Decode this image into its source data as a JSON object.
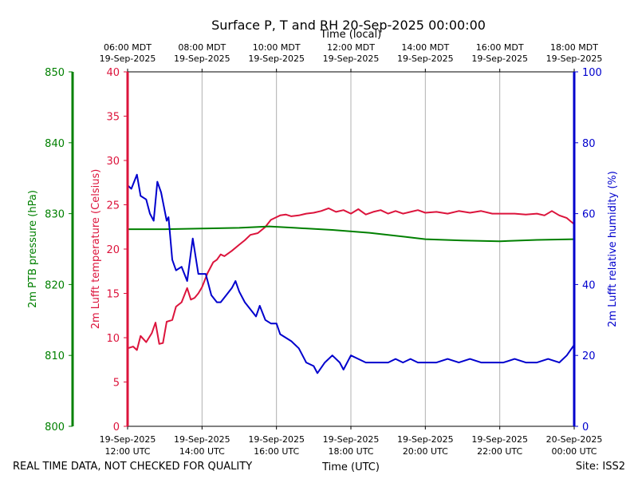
{
  "chart_data": {
    "type": "line",
    "title": "Surface P, T and RH 20-Sep-2025 00:00:00",
    "top_axis_title": "Time (local)",
    "bottom_axis_title": "Time (UTC)",
    "footer_left": "REAL TIME DATA, NOT CHECKED FOR QUALITY",
    "footer_right": "Site: ISS2",
    "x_hours": [
      12,
      14,
      16,
      18,
      20,
      22,
      24
    ],
    "xlim": [
      12,
      24
    ],
    "bottom_ticks": [
      [
        "19-Sep-2025",
        "12:00 UTC"
      ],
      [
        "19-Sep-2025",
        "14:00 UTC"
      ],
      [
        "19-Sep-2025",
        "16:00 UTC"
      ],
      [
        "19-Sep-2025",
        "18:00 UTC"
      ],
      [
        "19-Sep-2025",
        "20:00 UTC"
      ],
      [
        "19-Sep-2025",
        "22:00 UTC"
      ],
      [
        "20-Sep-2025",
        "00:00 UTC"
      ]
    ],
    "top_ticks": [
      [
        "06:00 MDT",
        "19-Sep-2025"
      ],
      [
        "08:00 MDT",
        "19-Sep-2025"
      ],
      [
        "10:00 MDT",
        "19-Sep-2025"
      ],
      [
        "12:00 MDT",
        "19-Sep-2025"
      ],
      [
        "14:00 MDT",
        "19-Sep-2025"
      ],
      [
        "16:00 MDT",
        "19-Sep-2025"
      ],
      [
        "18:00 MDT",
        "19-Sep-2025"
      ]
    ],
    "axes": {
      "temperature": {
        "label": "2m Lufft temperature (Celsius)",
        "ylim": [
          0,
          40
        ],
        "ticks": [
          0,
          5,
          10,
          15,
          20,
          25,
          30,
          35,
          40
        ],
        "color": "#dc143c"
      },
      "pressure": {
        "label": "2m PTB pressure (hPa)",
        "ylim": [
          800,
          850
        ],
        "ticks": [
          800,
          810,
          820,
          830,
          840,
          850
        ],
        "color": "#008000"
      },
      "humidity": {
        "label": "2m Lufft relative humidity (%)",
        "ylim": [
          0,
          100
        ],
        "ticks": [
          0,
          20,
          40,
          60,
          80,
          100
        ],
        "color": "#0000cd"
      }
    },
    "series": [
      {
        "name": "2m Lufft temperature",
        "axis": "temperature",
        "color": "#dc143c",
        "points": [
          [
            12.0,
            8.8
          ],
          [
            12.15,
            9.0
          ],
          [
            12.25,
            8.6
          ],
          [
            12.35,
            10.2
          ],
          [
            12.5,
            9.5
          ],
          [
            12.65,
            10.5
          ],
          [
            12.75,
            11.7
          ],
          [
            12.85,
            9.3
          ],
          [
            12.95,
            9.4
          ],
          [
            13.05,
            11.8
          ],
          [
            13.2,
            12.0
          ],
          [
            13.3,
            13.5
          ],
          [
            13.45,
            14.0
          ],
          [
            13.6,
            15.6
          ],
          [
            13.7,
            14.3
          ],
          [
            13.8,
            14.5
          ],
          [
            13.9,
            15.0
          ],
          [
            14.0,
            15.7
          ],
          [
            14.15,
            17.3
          ],
          [
            14.3,
            18.5
          ],
          [
            14.4,
            18.8
          ],
          [
            14.5,
            19.4
          ],
          [
            14.6,
            19.2
          ],
          [
            14.8,
            19.8
          ],
          [
            15.0,
            20.5
          ],
          [
            15.15,
            21.0
          ],
          [
            15.3,
            21.6
          ],
          [
            15.5,
            21.8
          ],
          [
            15.7,
            22.5
          ],
          [
            15.85,
            23.3
          ],
          [
            16.0,
            23.6
          ],
          [
            16.1,
            23.8
          ],
          [
            16.25,
            23.9
          ],
          [
            16.4,
            23.7
          ],
          [
            16.6,
            23.8
          ],
          [
            16.8,
            24.0
          ],
          [
            17.0,
            24.1
          ],
          [
            17.2,
            24.3
          ],
          [
            17.4,
            24.6
          ],
          [
            17.6,
            24.2
          ],
          [
            17.8,
            24.4
          ],
          [
            18.0,
            24.0
          ],
          [
            18.2,
            24.5
          ],
          [
            18.4,
            23.9
          ],
          [
            18.6,
            24.2
          ],
          [
            18.8,
            24.4
          ],
          [
            19.0,
            24.0
          ],
          [
            19.2,
            24.3
          ],
          [
            19.4,
            24.0
          ],
          [
            19.6,
            24.2
          ],
          [
            19.8,
            24.4
          ],
          [
            20.0,
            24.1
          ],
          [
            20.3,
            24.2
          ],
          [
            20.6,
            24.0
          ],
          [
            20.9,
            24.3
          ],
          [
            21.2,
            24.1
          ],
          [
            21.5,
            24.3
          ],
          [
            21.8,
            24.0
          ],
          [
            22.1,
            24.0
          ],
          [
            22.4,
            24.0
          ],
          [
            22.7,
            23.9
          ],
          [
            23.0,
            24.0
          ],
          [
            23.2,
            23.8
          ],
          [
            23.4,
            24.3
          ],
          [
            23.6,
            23.8
          ],
          [
            23.8,
            23.5
          ],
          [
            24.0,
            22.8
          ]
        ]
      },
      {
        "name": "2m PTB pressure",
        "axis": "pressure",
        "color": "#008000",
        "points": [
          [
            12.0,
            827.8
          ],
          [
            13.0,
            827.8
          ],
          [
            14.0,
            827.9
          ],
          [
            15.0,
            828.0
          ],
          [
            15.8,
            828.2
          ],
          [
            16.5,
            828.0
          ],
          [
            17.5,
            827.7
          ],
          [
            18.5,
            827.3
          ],
          [
            19.5,
            826.7
          ],
          [
            20.0,
            826.4
          ],
          [
            21.0,
            826.2
          ],
          [
            22.0,
            826.1
          ],
          [
            23.0,
            826.3
          ],
          [
            24.0,
            826.4
          ]
        ]
      },
      {
        "name": "2m Lufft relative humidity",
        "axis": "humidity",
        "color": "#0000cd",
        "points": [
          [
            12.0,
            68
          ],
          [
            12.1,
            67
          ],
          [
            12.25,
            71
          ],
          [
            12.35,
            65
          ],
          [
            12.5,
            64
          ],
          [
            12.6,
            60
          ],
          [
            12.7,
            58
          ],
          [
            12.8,
            69
          ],
          [
            12.9,
            66
          ],
          [
            13.05,
            58
          ],
          [
            13.1,
            59
          ],
          [
            13.2,
            47
          ],
          [
            13.3,
            44
          ],
          [
            13.45,
            45
          ],
          [
            13.6,
            41
          ],
          [
            13.75,
            53
          ],
          [
            13.9,
            43
          ],
          [
            14.1,
            43
          ],
          [
            14.25,
            37
          ],
          [
            14.4,
            35
          ],
          [
            14.5,
            35
          ],
          [
            14.65,
            37
          ],
          [
            14.8,
            39
          ],
          [
            14.9,
            41
          ],
          [
            15.0,
            38
          ],
          [
            15.15,
            35
          ],
          [
            15.3,
            33
          ],
          [
            15.45,
            31
          ],
          [
            15.55,
            34
          ],
          [
            15.7,
            30
          ],
          [
            15.85,
            29
          ],
          [
            16.0,
            29
          ],
          [
            16.1,
            26
          ],
          [
            16.25,
            25
          ],
          [
            16.4,
            24
          ],
          [
            16.6,
            22
          ],
          [
            16.8,
            18
          ],
          [
            17.0,
            17
          ],
          [
            17.1,
            15
          ],
          [
            17.3,
            18
          ],
          [
            17.5,
            20
          ],
          [
            17.7,
            18
          ],
          [
            17.8,
            16
          ],
          [
            18.0,
            20
          ],
          [
            18.2,
            19
          ],
          [
            18.4,
            18
          ],
          [
            18.6,
            18
          ],
          [
            18.8,
            18
          ],
          [
            19.0,
            18
          ],
          [
            19.2,
            19
          ],
          [
            19.4,
            18
          ],
          [
            19.6,
            19
          ],
          [
            19.8,
            18
          ],
          [
            20.0,
            18
          ],
          [
            20.3,
            18
          ],
          [
            20.6,
            19
          ],
          [
            20.9,
            18
          ],
          [
            21.2,
            19
          ],
          [
            21.5,
            18
          ],
          [
            21.8,
            18
          ],
          [
            22.1,
            18
          ],
          [
            22.4,
            19
          ],
          [
            22.7,
            18
          ],
          [
            23.0,
            18
          ],
          [
            23.3,
            19
          ],
          [
            23.6,
            18
          ],
          [
            23.8,
            20
          ],
          [
            24.0,
            23
          ]
        ]
      }
    ]
  }
}
